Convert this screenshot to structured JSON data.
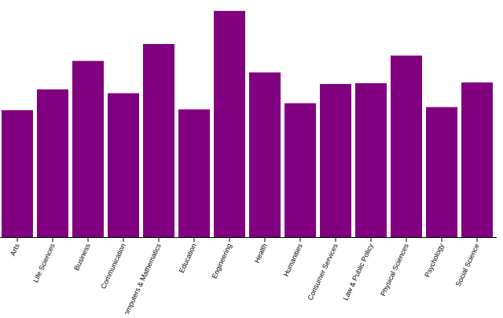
{
  "chart_data": {
    "type": "bar",
    "title": "",
    "xlabel": "",
    "ylabel": "",
    "categories": [
      "Arts",
      "Life Sciences",
      "Business",
      "Communication",
      "Computers & Mathematics",
      "Education",
      "Engineering",
      "Health",
      "Humanities",
      "Consumer Services",
      "Law & Public Policy",
      "Physical Sciences",
      "Psychology",
      "Social Science"
    ],
    "values": [
      165,
      192,
      229,
      187,
      251,
      166,
      294,
      214,
      174,
      199,
      200,
      236,
      169,
      201
    ],
    "ylim": [
      0,
      300
    ],
    "y_axis_shown": false,
    "grid": false,
    "bar_color": "#800080"
  }
}
